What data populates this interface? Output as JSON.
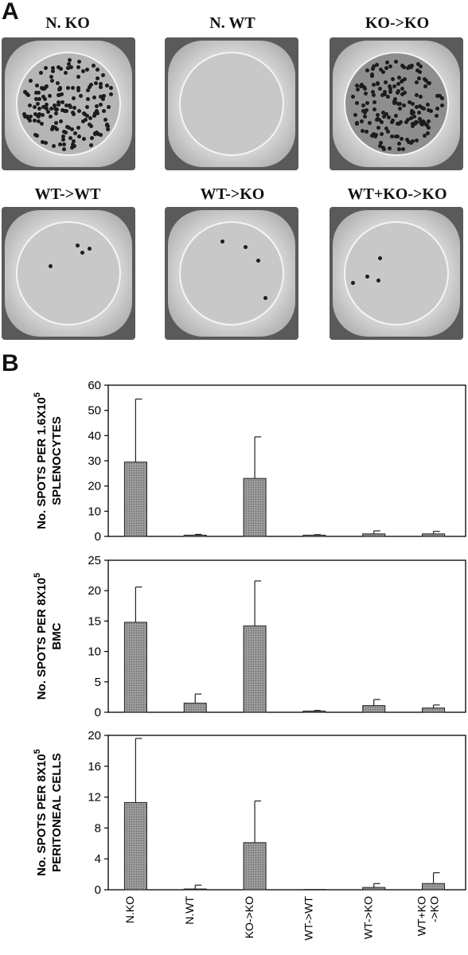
{
  "panel_a": {
    "letter": "A",
    "wells": [
      {
        "title": "N. KO",
        "spots": "dense"
      },
      {
        "title": "N. WT",
        "spots": "none"
      },
      {
        "title": "KO->KO",
        "spots": "dense"
      },
      {
        "title": "WT->WT",
        "spots": "sparse"
      },
      {
        "title": "WT->KO",
        "spots": "sparse"
      },
      {
        "title": "WT+KO->KO",
        "spots": "sparse"
      }
    ]
  },
  "panel_b": {
    "letter": "B",
    "x_category_labels": [
      "N.KO",
      "N.WT",
      "KO->KO",
      "WT->WT",
      "WT->KO",
      "WT+KO ->KO"
    ]
  },
  "chart_data": [
    {
      "type": "bar",
      "categories": [
        "N.KO",
        "N.WT",
        "KO->KO",
        "WT->WT",
        "WT->KO",
        "WT+KO ->KO"
      ],
      "values": [
        29.5,
        0.5,
        23,
        0.5,
        1,
        1
      ],
      "errors": [
        25,
        0.3,
        16.5,
        0.2,
        1.2,
        1
      ],
      "ylabel_lines": [
        "No. SPOTS PER 1.6X10",
        "SPLENOCYTES"
      ],
      "ylabel_exp": "5",
      "ylim": [
        0,
        60
      ],
      "yticks": [
        "0",
        "10",
        "20",
        "30",
        "40",
        "50",
        "60"
      ],
      "bar_color": "#8c8c8c"
    },
    {
      "type": "bar",
      "categories": [
        "N.KO",
        "N.WT",
        "KO->KO",
        "WT->WT",
        "WT->KO",
        "WT+KO ->KO"
      ],
      "values": [
        14.8,
        1.5,
        14.2,
        0.2,
        1.1,
        0.7
      ],
      "errors": [
        5.8,
        1.5,
        7.4,
        0.1,
        1,
        0.5
      ],
      "ylabel_lines": [
        "No. SPOTS PER 8X10",
        "BMC"
      ],
      "ylabel_exp": "5",
      "ylim": [
        0,
        25
      ],
      "yticks": [
        "0",
        "5",
        "10",
        "15",
        "20",
        "25"
      ],
      "bar_color": "#8c8c8c"
    },
    {
      "type": "bar",
      "categories": [
        "N.KO",
        "N.WT",
        "KO->KO",
        "WT->WT",
        "WT->KO",
        "WT+KO ->KO"
      ],
      "values": [
        11.3,
        0.1,
        6.1,
        0,
        0.3,
        0.8
      ],
      "errors": [
        8.3,
        0.5,
        5.4,
        0,
        0.5,
        1.4
      ],
      "ylabel_lines": [
        "No. SPOTS PER 8X10",
        "PERITONEAL CELLS"
      ],
      "ylabel_exp": "5",
      "ylim": [
        0,
        20
      ],
      "yticks": [
        "0",
        "4",
        "8",
        "12",
        "16",
        "20"
      ],
      "bar_color": "#8c8c8c"
    }
  ]
}
